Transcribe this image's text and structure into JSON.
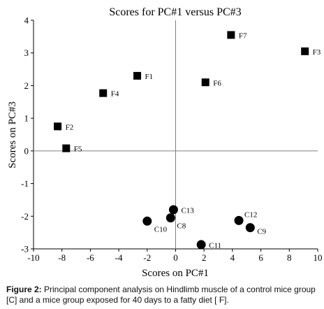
{
  "chart_data": {
    "type": "scatter",
    "title": "Scores for PC#1 versus PC#3",
    "xlabel": "Scores on PC#1",
    "ylabel": "Scores on PC#3",
    "xlim": [
      -10,
      10
    ],
    "ylim": [
      -3,
      4
    ],
    "x_ticks": [
      -10,
      -8,
      -6,
      -4,
      -2,
      0,
      2,
      4,
      6,
      8,
      10
    ],
    "y_ticks": [
      -3,
      -2,
      -1,
      0,
      1,
      2,
      3,
      4
    ],
    "x_tick_labels": [
      "-10",
      "-8",
      "-6",
      "-4",
      "-2",
      "0",
      "2",
      "4",
      "6",
      "8",
      "10"
    ],
    "y_tick_labels": [
      "-3",
      "-2",
      "-1",
      "0",
      "1",
      "2",
      "3",
      "4"
    ],
    "grid": false,
    "series": [
      {
        "marker": "square",
        "color": "#000000",
        "points": [
          {
            "label": "F1",
            "x": -2.7,
            "y": 2.3
          },
          {
            "label": "F2",
            "x": -8.3,
            "y": 0.75
          },
          {
            "label": "F3",
            "x": 9.1,
            "y": 3.05
          },
          {
            "label": "F4",
            "x": -5.1,
            "y": 1.77
          },
          {
            "label": "F5",
            "x": -7.7,
            "y": 0.08
          },
          {
            "label": "F6",
            "x": 2.1,
            "y": 2.1
          },
          {
            "label": "F7",
            "x": 3.9,
            "y": 3.55
          }
        ]
      },
      {
        "marker": "circle",
        "color": "#000000",
        "points": [
          {
            "label": "C8",
            "x": -0.35,
            "y": -2.05
          },
          {
            "label": "C9",
            "x": 5.25,
            "y": -2.35
          },
          {
            "label": "C10",
            "x": -2.0,
            "y": -2.15
          },
          {
            "label": "C11",
            "x": 1.8,
            "y": -2.87
          },
          {
            "label": "C12",
            "x": 4.45,
            "y": -2.13
          },
          {
            "label": "C13",
            "x": -0.15,
            "y": -1.8
          }
        ]
      }
    ]
  },
  "caption": {
    "prefix": "Figure 2:",
    "text": " Principal component analysis on Hindlimb muscle of a control mice group [C] and a mice group exposed for 40 days to a fatty diet [ F]."
  }
}
